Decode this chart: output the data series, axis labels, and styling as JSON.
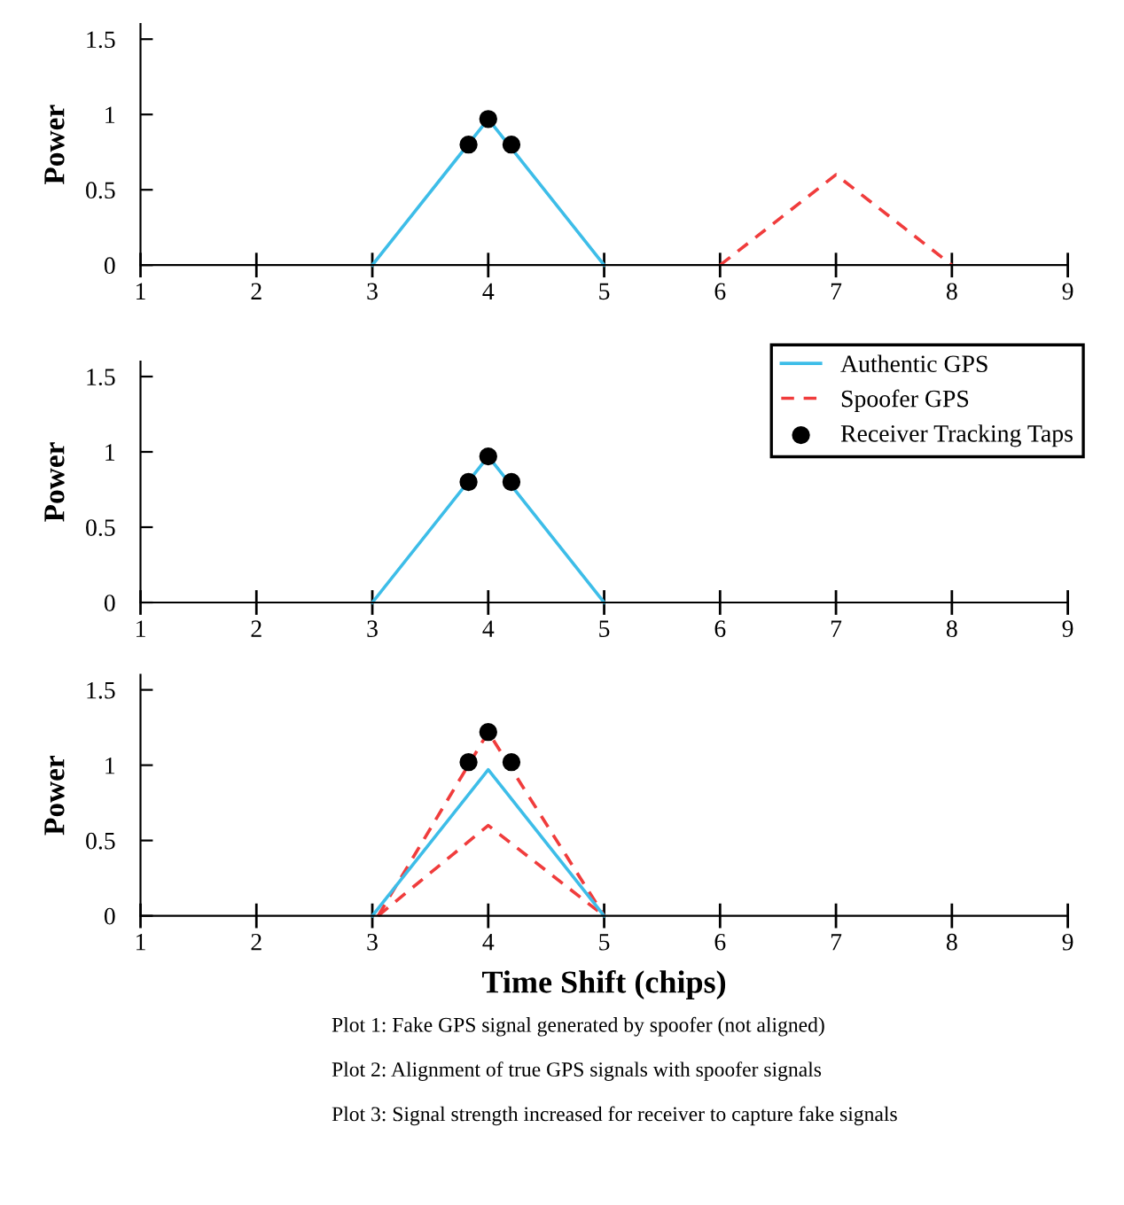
{
  "chart_data": [
    {
      "type": "line",
      "ylabel": "Power",
      "xlim": [
        1,
        9
      ],
      "ylim": [
        0,
        1.6
      ],
      "xticks": [
        1,
        2,
        3,
        4,
        5,
        6,
        7,
        8,
        9
      ],
      "yticks": [
        0,
        0.5,
        1,
        1.5
      ],
      "grid": false,
      "legend": false,
      "series": [
        {
          "color": "#3dbde8",
          "x": [
            3,
            4,
            5
          ],
          "values": [
            0,
            0.97,
            0
          ],
          "line_style": "solid"
        },
        {
          "color": "#f03c3c",
          "x": [
            6,
            7,
            8
          ],
          "values": [
            0,
            0.6,
            0
          ],
          "line_style": "dashed"
        },
        {
          "type": "scatter",
          "color": "#000000",
          "x": [
            3.83,
            4,
            4.2
          ],
          "values": [
            0.8,
            0.97,
            0.8
          ],
          "marker": "circle"
        }
      ]
    },
    {
      "type": "line",
      "ylabel": "Power",
      "xlim": [
        1,
        9
      ],
      "ylim": [
        0,
        1.6
      ],
      "xticks": [
        1,
        2,
        3,
        4,
        5,
        6,
        7,
        8,
        9
      ],
      "yticks": [
        0,
        0.5,
        1,
        1.5
      ],
      "grid": false,
      "legend": "top right",
      "series": [
        {
          "name": "Authentic GPS",
          "color": "#3dbde8",
          "x": [
            3,
            4,
            5
          ],
          "values": [
            0,
            0.97,
            0
          ],
          "line_style": "solid"
        },
        {
          "name": "Spoofer GPS",
          "color": "#f03c3c",
          "line_style": "dashed"
        },
        {
          "name": "Receiver Tracking Taps",
          "type": "scatter",
          "color": "#000000",
          "x": [
            3.83,
            4,
            4.2
          ],
          "values": [
            0.8,
            0.97,
            0.8
          ],
          "marker": "circle"
        }
      ]
    },
    {
      "type": "line",
      "ylabel": "Power",
      "xlabel": "Time Shift (chips)",
      "xlim": [
        1,
        9
      ],
      "ylim": [
        0,
        1.6
      ],
      "xticks": [
        1,
        2,
        3,
        4,
        5,
        6,
        7,
        8,
        9
      ],
      "yticks": [
        0,
        0.5,
        1,
        1.5
      ],
      "grid": false,
      "legend": false,
      "series": [
        {
          "color": "#f03c3c",
          "x": [
            3.05,
            4,
            5
          ],
          "values": [
            0,
            1.22,
            0
          ],
          "line_style": "dashed"
        },
        {
          "color": "#f03c3c",
          "x": [
            3.05,
            4,
            5
          ],
          "values": [
            0,
            0.6,
            0
          ],
          "line_style": "dashed"
        },
        {
          "color": "#3dbde8",
          "x": [
            3,
            4,
            5
          ],
          "values": [
            0,
            0.97,
            0
          ],
          "line_style": "solid"
        },
        {
          "type": "scatter",
          "color": "#000000",
          "x": [
            3.83,
            4,
            4.2
          ],
          "values": [
            1.02,
            1.22,
            1.02
          ],
          "marker": "circle"
        }
      ],
      "annotations": [
        "Plot 1: Fake GPS signal generated by spoofer (not aligned)",
        "Plot 2: Alignment of true GPS signals with spoofer signals",
        "Plot 3: Signal strength increased for receiver to capture fake signals"
      ]
    }
  ]
}
